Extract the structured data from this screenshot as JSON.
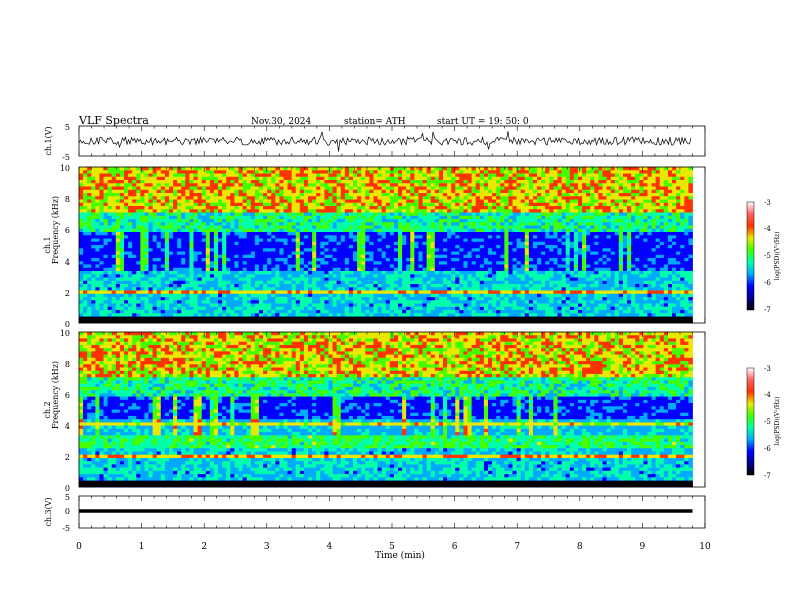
{
  "header": {
    "title": "VLF  Spectra",
    "date": "Nov.30, 2024",
    "station": "station= ATH",
    "start": "start  UT  =    19: 50: 0"
  },
  "colors": {
    "colormap": [
      "#000000",
      "#00008b",
      "#0000ff",
      "#00aaff",
      "#00ffaa",
      "#44ff00",
      "#e8e800",
      "#ff3300",
      "#ff6060",
      "#ffffff"
    ]
  },
  "chart_data": [
    {
      "type": "line",
      "name": "ch1-waveform",
      "ylabel": "ch.1(V)",
      "ylim": [
        -5,
        5
      ],
      "yticks": [
        "5",
        "-5"
      ],
      "x_range": [
        0,
        9.8
      ],
      "baseline_value": 0,
      "amplitude_approx": 1
    },
    {
      "type": "heatmap",
      "name": "ch1-spectrogram",
      "ylabel_lines": [
        "ch.1",
        "Frequency  (kHz)"
      ],
      "yticks": [
        "0",
        "2",
        "4",
        "6",
        "8",
        "10"
      ],
      "ylim": [
        0,
        10
      ],
      "colorbar": {
        "label": "log(PSD)(V²/Hz)",
        "ticks": [
          "-3",
          "-4",
          "-5",
          "-6",
          "-7"
        ],
        "range": [
          -7,
          -3
        ]
      },
      "x_range": [
        0,
        9.8
      ],
      "notable_features": [
        {
          "x_min": 2.55,
          "freq_khz": 4.2
        },
        {
          "x_min": 7.65,
          "freq_khz": 4.2
        }
      ]
    },
    {
      "type": "heatmap",
      "name": "ch2-spectrogram",
      "ylabel_lines": [
        "ch.2",
        "Frequency  (kHz)"
      ],
      "yticks": [
        "0",
        "2",
        "4",
        "6",
        "8",
        "10"
      ],
      "ylim": [
        0,
        10
      ],
      "colorbar": {
        "label": "log(PSD)(V²/Hz)",
        "ticks": [
          "-3",
          "-4",
          "-5",
          "-6",
          "-7"
        ],
        "range": [
          -7,
          -3
        ]
      },
      "x_range": [
        0,
        9.8
      ],
      "notable_features": [
        {
          "x_min": 2.55,
          "freq_khz": 4.2
        },
        {
          "x_min": 7.65,
          "freq_khz": 4.2
        }
      ]
    },
    {
      "type": "line",
      "name": "ch3-waveform",
      "ylabel": "ch.3(V)",
      "ylim": [
        -5,
        5
      ],
      "yticks": [
        "5",
        "0",
        "-5"
      ],
      "x_range": [
        0,
        9.8
      ],
      "value": -1
    }
  ],
  "xaxis": {
    "label": "Time  (min)",
    "ticks": [
      "0",
      "1",
      "2",
      "3",
      "4",
      "5",
      "6",
      "7",
      "8",
      "9",
      "10"
    ],
    "xlim": [
      0,
      10
    ]
  }
}
